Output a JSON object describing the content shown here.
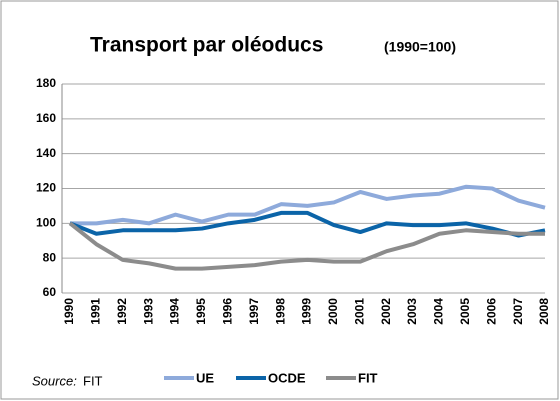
{
  "chart_data": {
    "type": "line",
    "title": "Transport  par oléoducs",
    "subtitle": "(1990=100)",
    "source_label": "Source:",
    "source": "FIT",
    "categories": [
      "1990",
      "1991",
      "1992",
      "1993",
      "1994",
      "1995",
      "1996",
      "1997",
      "1998",
      "1999",
      "2000",
      "2001",
      "2002",
      "2003",
      "2004",
      "2005",
      "2006",
      "2007",
      "2008"
    ],
    "series": [
      {
        "name": "UE",
        "color": "#8eaadb",
        "values": [
          100,
          100,
          102,
          100,
          105,
          101,
          105,
          105,
          111,
          110,
          112,
          118,
          114,
          116,
          117,
          121,
          120,
          113,
          109
        ]
      },
      {
        "name": "OCDE",
        "color": "#0b64a8",
        "values": [
          100,
          94,
          96,
          96,
          96,
          97,
          100,
          102,
          106,
          106,
          99,
          95,
          100,
          99,
          99,
          100,
          97,
          93,
          96
        ]
      },
      {
        "name": "FIT",
        "color": "#8c8c8c",
        "values": [
          100,
          88,
          79,
          77,
          74,
          74,
          75,
          76,
          78,
          79,
          78,
          78,
          84,
          88,
          94,
          96,
          95,
          94,
          94
        ]
      }
    ],
    "ylim": [
      60,
      180
    ],
    "yticks": [
      60,
      80,
      100,
      120,
      140,
      160,
      180
    ],
    "grid": true
  }
}
